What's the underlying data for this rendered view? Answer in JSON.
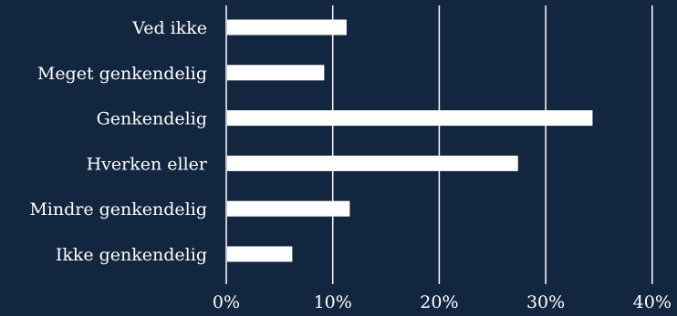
{
  "chart_data": {
    "type": "bar",
    "orientation": "horizontal",
    "categories": [
      "Ved ikke",
      "Meget genkendelig",
      "Genkendelig",
      "Hverken eller",
      "Mindre genkendelig",
      "Ikke genkendelig"
    ],
    "values": [
      11.3,
      9.2,
      34.4,
      27.4,
      11.6,
      6.2
    ],
    "value_unit": "%",
    "xlim": [
      0,
      40
    ],
    "xticks": [
      0,
      10,
      20,
      30,
      40
    ],
    "xtick_labels": [
      "0%",
      "10%",
      "20%",
      "30%",
      "40%"
    ],
    "grid": true,
    "legend": "none",
    "title": "",
    "xlabel": "",
    "ylabel": ""
  },
  "colors": {
    "background": "#13263f",
    "bar": "#ffffff",
    "text": "#ffffff",
    "grid": "#ffffff"
  }
}
